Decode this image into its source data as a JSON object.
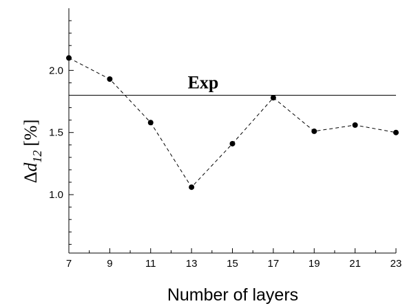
{
  "chart_data": {
    "type": "line",
    "title": "",
    "xlabel": "Number of layers",
    "ylabel": {
      "delta": "Δ",
      "var": "d",
      "sub": "12",
      "unit": "[%]"
    },
    "x_ticks": [
      "7",
      "9",
      "11",
      "13",
      "15",
      "17",
      "19",
      "21",
      "23"
    ],
    "y_ticks": [
      "1.0",
      "1.5",
      "2.0"
    ],
    "xlim": [
      7,
      23
    ],
    "ylim": [
      0.53,
      2.5
    ],
    "grid": false,
    "line_style": "dashed",
    "marker": "circle",
    "series": [
      {
        "x": [
          7,
          9,
          11,
          13,
          15,
          17,
          19,
          21,
          23
        ],
        "values": [
          2.1,
          1.93,
          1.58,
          1.06,
          1.41,
          1.78,
          1.51,
          1.56,
          1.5
        ]
      }
    ],
    "reference_line": {
      "label": "Exp",
      "value": 1.8
    }
  }
}
